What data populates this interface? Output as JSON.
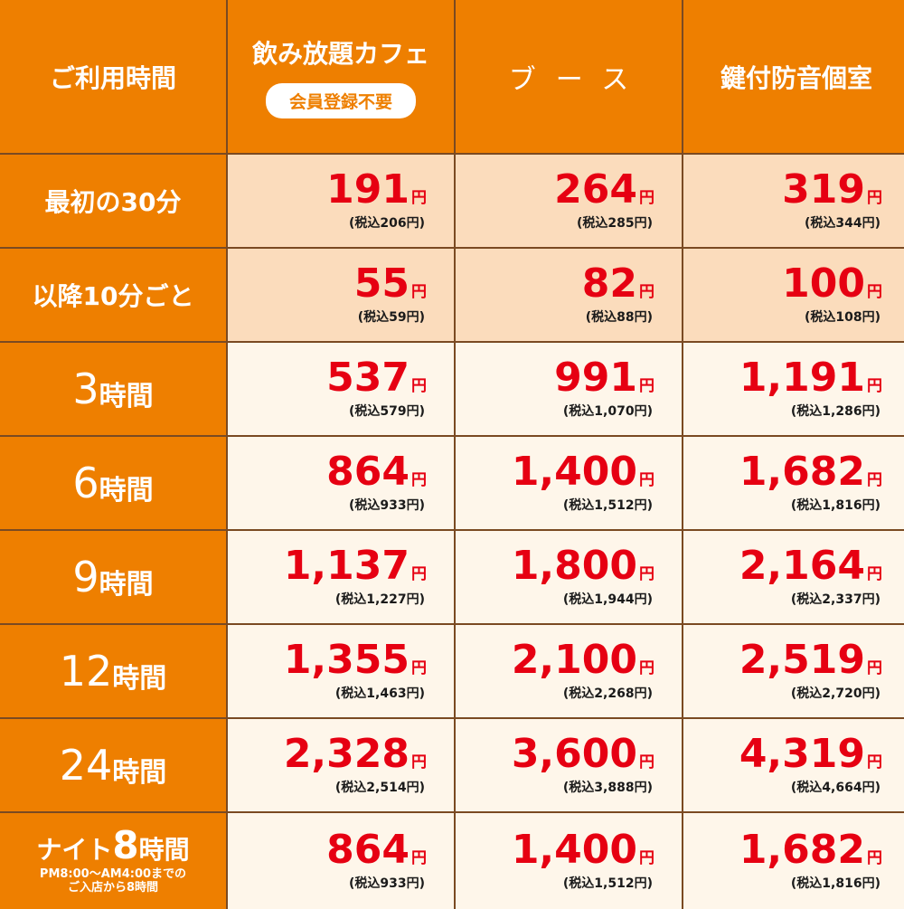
{
  "header": {
    "time_label": "ご利用時間",
    "columns": [
      {
        "title": "飲み放題カフェ",
        "badge": "会員登録不要"
      },
      {
        "title": "ブース",
        "badge": ""
      },
      {
        "title": "鍵付防音個室",
        "badge": ""
      }
    ]
  },
  "yen": "円",
  "rows": [
    {
      "label": "最初の30分",
      "prices": [
        {
          "price": "191",
          "tax": "(税込206円)"
        },
        {
          "price": "264",
          "tax": "(税込285円)"
        },
        {
          "price": "319",
          "tax": "(税込344円)"
        }
      ]
    },
    {
      "label": "以降10分ごと",
      "prices": [
        {
          "price": "55",
          "tax": "(税込59円)"
        },
        {
          "price": "82",
          "tax": "(税込88円)"
        },
        {
          "price": "100",
          "tax": "(税込108円)"
        }
      ]
    },
    {
      "label_num": "3",
      "label_unit": "時間",
      "prices": [
        {
          "price": "537",
          "tax": "(税込579円)"
        },
        {
          "price": "991",
          "tax": "(税込1,070円)"
        },
        {
          "price": "1,191",
          "tax": "(税込1,286円)"
        }
      ]
    },
    {
      "label_num": "6",
      "label_unit": "時間",
      "prices": [
        {
          "price": "864",
          "tax": "(税込933円)"
        },
        {
          "price": "1,400",
          "tax": "(税込1,512円)"
        },
        {
          "price": "1,682",
          "tax": "(税込1,816円)"
        }
      ]
    },
    {
      "label_num": "9",
      "label_unit": "時間",
      "prices": [
        {
          "price": "1,137",
          "tax": "(税込1,227円)"
        },
        {
          "price": "1,800",
          "tax": "(税込1,944円)"
        },
        {
          "price": "2,164",
          "tax": "(税込2,337円)"
        }
      ]
    },
    {
      "label_num": "12",
      "label_unit": "時間",
      "prices": [
        {
          "price": "1,355",
          "tax": "(税込1,463円)"
        },
        {
          "price": "2,100",
          "tax": "(税込2,268円)"
        },
        {
          "price": "2,519",
          "tax": "(税込2,720円)"
        }
      ]
    },
    {
      "label_num": "24",
      "label_unit": "時間",
      "prices": [
        {
          "price": "2,328",
          "tax": "(税込2,514円)"
        },
        {
          "price": "3,600",
          "tax": "(税込3,888円)"
        },
        {
          "price": "4,319",
          "tax": "(税込4,664円)"
        }
      ]
    },
    {
      "label_pre": "ナイト",
      "label_num": "8",
      "label_unit": "時間",
      "note1": "PM8:00～AM4:00までの",
      "note2": "ご入店から8時間",
      "prices": [
        {
          "price": "864",
          "tax": "(税込933円)"
        },
        {
          "price": "1,400",
          "tax": "(税込1,512円)"
        },
        {
          "price": "1,682",
          "tax": "(税込1,816円)"
        }
      ]
    }
  ],
  "colors": {
    "orange": "#ee7f00",
    "red": "#e60012",
    "peach": "#fbdcbc",
    "cream": "#fef6ea"
  }
}
